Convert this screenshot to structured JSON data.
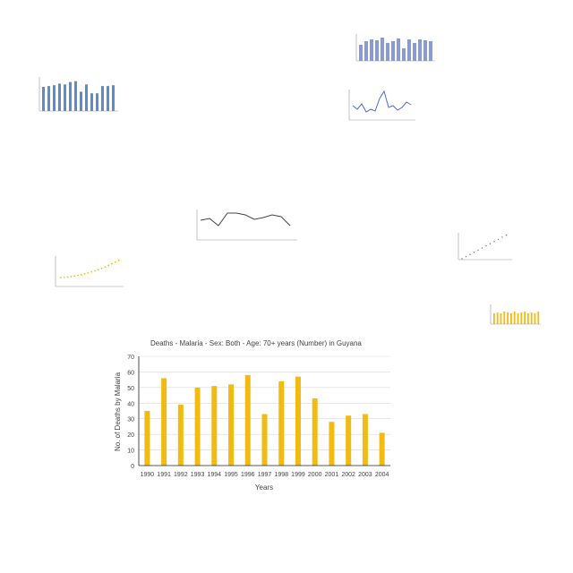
{
  "chart_data": [
    {
      "type": "bar",
      "title": "Deaths - Malaria - Sex: Both - Age: 70+ years (Number) in Guyana",
      "xlabel": "Years",
      "ylabel": "No. of Deaths by Malaria",
      "categories": [
        "1990",
        "1991",
        "1992",
        "1993",
        "1994",
        "1995",
        "1996",
        "1997",
        "1998",
        "1999",
        "2000",
        "2001",
        "2002",
        "2003",
        "2004"
      ],
      "values": [
        35,
        56,
        39,
        50,
        51,
        52,
        58,
        33,
        54,
        57,
        43,
        28,
        32,
        33,
        21
      ],
      "ylim": [
        0,
        70
      ],
      "yticks": [
        0,
        10,
        20,
        30,
        40,
        50,
        60,
        70
      ],
      "grid": true,
      "color": "#f2bb13"
    }
  ],
  "thumbnail_colors": {
    "blue": "#5b8ec9",
    "purple": "#8a9ad6",
    "line_blue": "#4a6fd1",
    "gray_line": "#444444",
    "orange_dots": "#f2bb13",
    "gold": "#f2bb13"
  }
}
